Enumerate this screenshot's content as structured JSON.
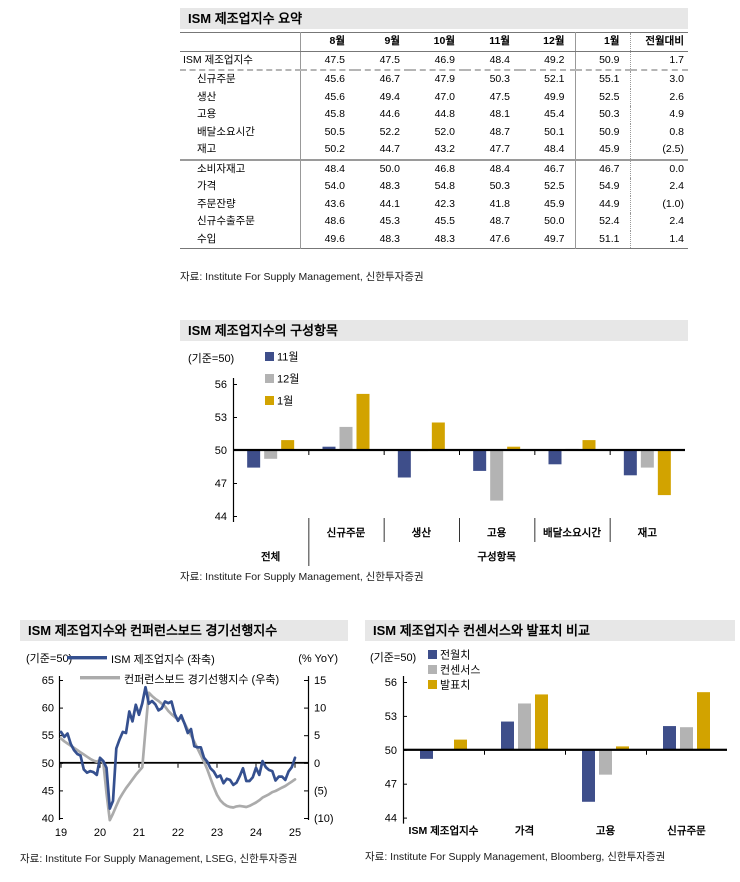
{
  "summary_table": {
    "title": "ISM 제조업지수 요약",
    "source": "자료: Institute For Supply Management, 신한투자증권",
    "columns": [
      "8월",
      "9월",
      "10월",
      "11월",
      "12월",
      "1월",
      "전월대비"
    ],
    "rows": [
      {
        "label": "ISM 제조업지수",
        "indent": 0,
        "rule": "dash",
        "values": [
          "47.5",
          "47.5",
          "46.9",
          "48.4",
          "49.2",
          "50.9",
          "1.7"
        ]
      },
      {
        "label": "신규주문",
        "indent": 1,
        "rule": "",
        "values": [
          "45.6",
          "46.7",
          "47.9",
          "50.3",
          "52.1",
          "55.1",
          "3.0"
        ]
      },
      {
        "label": "생산",
        "indent": 1,
        "rule": "",
        "values": [
          "45.6",
          "49.4",
          "47.0",
          "47.5",
          "49.9",
          "52.5",
          "2.6"
        ]
      },
      {
        "label": "고용",
        "indent": 1,
        "rule": "",
        "values": [
          "45.8",
          "44.6",
          "44.8",
          "48.1",
          "45.4",
          "50.3",
          "4.9"
        ]
      },
      {
        "label": "배달소요시간",
        "indent": 1,
        "rule": "",
        "values": [
          "50.5",
          "52.2",
          "52.0",
          "48.7",
          "50.1",
          "50.9",
          "0.8"
        ]
      },
      {
        "label": "재고",
        "indent": 1,
        "rule": "thick",
        "values": [
          "50.2",
          "44.7",
          "43.2",
          "47.7",
          "48.4",
          "45.9",
          "(2.5)"
        ]
      },
      {
        "label": "소비자재고",
        "indent": 1,
        "rule": "",
        "values": [
          "48.4",
          "50.0",
          "46.8",
          "48.4",
          "46.7",
          "46.7",
          "0.0"
        ]
      },
      {
        "label": "가격",
        "indent": 1,
        "rule": "",
        "values": [
          "54.0",
          "48.3",
          "54.8",
          "50.3",
          "52.5",
          "54.9",
          "2.4"
        ]
      },
      {
        "label": "주문잔량",
        "indent": 1,
        "rule": "",
        "values": [
          "43.6",
          "44.1",
          "42.3",
          "41.8",
          "45.9",
          "44.9",
          "(1.0)"
        ]
      },
      {
        "label": "신규수출주문",
        "indent": 1,
        "rule": "",
        "values": [
          "48.6",
          "45.3",
          "45.5",
          "48.7",
          "50.0",
          "52.4",
          "2.4"
        ]
      },
      {
        "label": "수입",
        "indent": 1,
        "rule": "",
        "values": [
          "49.6",
          "48.3",
          "48.3",
          "47.6",
          "49.7",
          "51.1",
          "1.4"
        ]
      }
    ]
  },
  "colors": {
    "navy": "#3E4E8A",
    "gray": "#B3B3B3",
    "gold": "#D2A300",
    "line_blue": "#35508F",
    "line_gray": "#ABABAB",
    "title_bg": "#E7E7E7"
  },
  "chart_data": [
    {
      "type": "bar",
      "title": "ISM 제조업지수의 구성항목",
      "axis_note": "(기준=50)",
      "baseline": 50,
      "ylim": [
        44,
        56
      ],
      "yticks": [
        56,
        53,
        50,
        47,
        44
      ],
      "grid": false,
      "legend_position": "top-left",
      "categories": [
        "전체",
        "신규주문",
        "생산",
        "고용",
        "배달소요시간",
        "재고"
      ],
      "group_labels": {
        "first": "전체",
        "rest": "구성항목"
      },
      "series": [
        {
          "name": "11월",
          "color": "#3E4E8A",
          "values": [
            48.4,
            50.3,
            47.5,
            48.1,
            48.7,
            47.7
          ]
        },
        {
          "name": "12월",
          "color": "#B3B3B3",
          "values": [
            49.2,
            52.1,
            49.9,
            45.4,
            50.1,
            48.4
          ]
        },
        {
          "name": "1월",
          "color": "#D2A300",
          "values": [
            50.9,
            55.1,
            52.5,
            50.3,
            50.9,
            45.9
          ]
        }
      ],
      "source": "자료: Institute For Supply Management, 신한투자증권"
    },
    {
      "type": "line",
      "title": "ISM 제조업지수와 컨퍼런스보드 경기선행지수",
      "left_axis_note": "(기준=50)",
      "right_axis_note": "(% YoY)",
      "left_ylim": [
        40,
        65
      ],
      "right_ylim": [
        -10,
        15
      ],
      "left_yticks": [
        "65",
        "60",
        "55",
        "50",
        "45",
        "40"
      ],
      "right_yticks": [
        "15",
        "10",
        "5",
        "0",
        "(5)",
        "(10)"
      ],
      "xticks": [
        "19",
        "20",
        "21",
        "22",
        "23",
        "24",
        "25"
      ],
      "x_start": "2019-01",
      "x_end": "2025-01",
      "grid": false,
      "series": [
        {
          "name": "ISM 제조업지수 (좌축)",
          "axis": "left",
          "color": "#35508F",
          "values": [
            55.6,
            54.7,
            55.3,
            53.4,
            52.3,
            51.6,
            51.3,
            48.8,
            48.2,
            48.5,
            48.3,
            47.8,
            50.9,
            50.3,
            49.1,
            41.7,
            43.1,
            52.6,
            54.2,
            55.6,
            55.4,
            59.3,
            57.5,
            60.5,
            58.7,
            60.8,
            63.7,
            60.7,
            61.2,
            60.6,
            59.5,
            59.9,
            61.1,
            60.8,
            61.1,
            58.8,
            57.6,
            58.6,
            57.1,
            55.4,
            56.1,
            53.0,
            52.8,
            52.8,
            50.9,
            50.2,
            49.0,
            48.4,
            47.4,
            47.7,
            46.3,
            47.1,
            46.9,
            46.0,
            46.4,
            47.6,
            49.0,
            46.7,
            46.7,
            47.4,
            49.1,
            47.8,
            50.3,
            49.2,
            48.7,
            48.5,
            46.8,
            47.5,
            47.5,
            46.9,
            48.4,
            49.2,
            50.9
          ]
        },
        {
          "name": "컨퍼런스보드 경기선행지수 (우축)",
          "axis": "right",
          "color": "#ABABAB",
          "values": [
            4.4,
            3.9,
            3.5,
            3.1,
            2.7,
            2.3,
            1.9,
            1.5,
            1.1,
            0.7,
            0.4,
            0.2,
            0.5,
            0.1,
            -5.5,
            -10.4,
            -9.2,
            -7.8,
            -6.5,
            -5.5,
            -4.6,
            -3.8,
            -3.0,
            -2.2,
            -1.5,
            -0.8,
            6.0,
            12.7,
            12.1,
            11.6,
            11.2,
            10.7,
            10.2,
            9.4,
            8.8,
            8.3,
            7.8,
            8.2,
            7.2,
            6.0,
            5.0,
            3.8,
            2.6,
            1.4,
            0.2,
            -1.2,
            -2.8,
            -4.4,
            -5.8,
            -6.8,
            -7.4,
            -7.8,
            -8.0,
            -8.1,
            -7.9,
            -7.8,
            -7.9,
            -8.0,
            -7.8,
            -7.5,
            -7.2,
            -6.8,
            -6.3,
            -6.0,
            -5.7,
            -5.3,
            -5.1,
            -4.8,
            -4.5,
            -4.2,
            -3.8,
            -3.4,
            -3.0
          ]
        }
      ],
      "source": "자료: Institute For Supply Management, LSEG, 신한투자증권"
    },
    {
      "type": "bar",
      "title": "ISM 제조업지수 컨센서스와 발표치 비교",
      "axis_note": "(기준=50)",
      "baseline": 50,
      "ylim": [
        44,
        56
      ],
      "yticks": [
        56,
        53,
        50,
        47,
        44
      ],
      "grid": false,
      "legend_position": "top-left",
      "categories": [
        "ISM 제조업지수",
        "가격",
        "고용",
        "신규주문"
      ],
      "series": [
        {
          "name": "전월치",
          "color": "#3E4E8A",
          "values": [
            49.2,
            52.5,
            45.4,
            52.1
          ]
        },
        {
          "name": "컨센서스",
          "color": "#B3B3B3",
          "values": [
            50.0,
            54.1,
            47.8,
            52.0
          ]
        },
        {
          "name": "발표치",
          "color": "#D2A300",
          "values": [
            50.9,
            54.9,
            50.3,
            55.1
          ]
        }
      ],
      "source": "자료: Institute For Supply Management, Bloomberg, 신한투자증권"
    }
  ]
}
